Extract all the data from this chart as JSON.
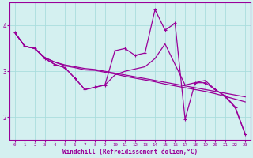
{
  "background_color": "#d4f0f0",
  "line_color": "#990099",
  "grid_color": "#aadddd",
  "xlabel": "Windchill (Refroidissement éolien,°C)",
  "xlabel_color": "#990099",
  "tick_color": "#990099",
  "ylim": [
    1.5,
    4.5
  ],
  "xlim": [
    -0.5,
    23.5
  ],
  "yticks": [
    2,
    3,
    4
  ],
  "xticks": [
    0,
    1,
    2,
    3,
    4,
    5,
    6,
    7,
    8,
    9,
    10,
    11,
    12,
    13,
    14,
    15,
    16,
    17,
    18,
    19,
    20,
    21,
    22,
    23
  ],
  "series_line1_x": [
    0,
    1,
    2,
    3,
    4,
    5,
    6,
    7,
    8,
    9,
    10,
    11,
    12,
    13,
    14,
    15,
    16,
    17,
    18,
    19,
    20,
    21,
    22,
    23
  ],
  "series_line1_y": [
    3.85,
    3.55,
    3.5,
    3.28,
    3.15,
    3.08,
    2.85,
    2.6,
    2.65,
    2.7,
    3.45,
    3.5,
    3.35,
    3.4,
    4.35,
    3.9,
    4.05,
    1.95,
    2.75,
    2.75,
    2.6,
    2.45,
    2.2,
    1.62
  ],
  "series_line2_x": [
    0,
    1,
    2,
    3,
    4,
    5,
    6,
    7,
    8,
    9,
    10,
    11,
    12,
    13,
    14,
    15,
    16,
    17,
    18,
    19,
    20,
    21,
    22,
    23
  ],
  "series_line2_y": [
    3.85,
    3.55,
    3.5,
    3.28,
    3.15,
    3.08,
    2.85,
    2.6,
    2.65,
    2.7,
    2.92,
    3.0,
    3.05,
    3.1,
    3.28,
    3.6,
    3.15,
    2.7,
    2.75,
    2.8,
    2.6,
    2.46,
    2.22,
    1.62
  ],
  "series_line3_x": [
    0,
    1,
    2,
    3,
    4,
    5,
    6,
    7,
    8,
    9,
    10,
    11,
    12,
    13,
    14,
    15,
    16,
    17,
    18,
    19,
    20,
    21,
    22,
    23
  ],
  "series_line3_y": [
    3.85,
    3.55,
    3.5,
    3.3,
    3.2,
    3.12,
    3.08,
    3.03,
    3.02,
    2.98,
    2.94,
    2.89,
    2.85,
    2.81,
    2.77,
    2.72,
    2.68,
    2.64,
    2.6,
    2.56,
    2.51,
    2.45,
    2.39,
    2.33
  ],
  "series_line4_x": [
    0,
    1,
    2,
    3,
    4,
    5,
    6,
    7,
    8,
    9,
    10,
    11,
    12,
    13,
    14,
    15,
    16,
    17,
    18,
    19,
    20,
    21,
    22,
    23
  ],
  "series_line4_y": [
    3.85,
    3.55,
    3.5,
    3.3,
    3.2,
    3.14,
    3.1,
    3.06,
    3.04,
    3.0,
    2.96,
    2.92,
    2.88,
    2.84,
    2.8,
    2.76,
    2.72,
    2.68,
    2.64,
    2.6,
    2.56,
    2.52,
    2.48,
    2.44
  ]
}
